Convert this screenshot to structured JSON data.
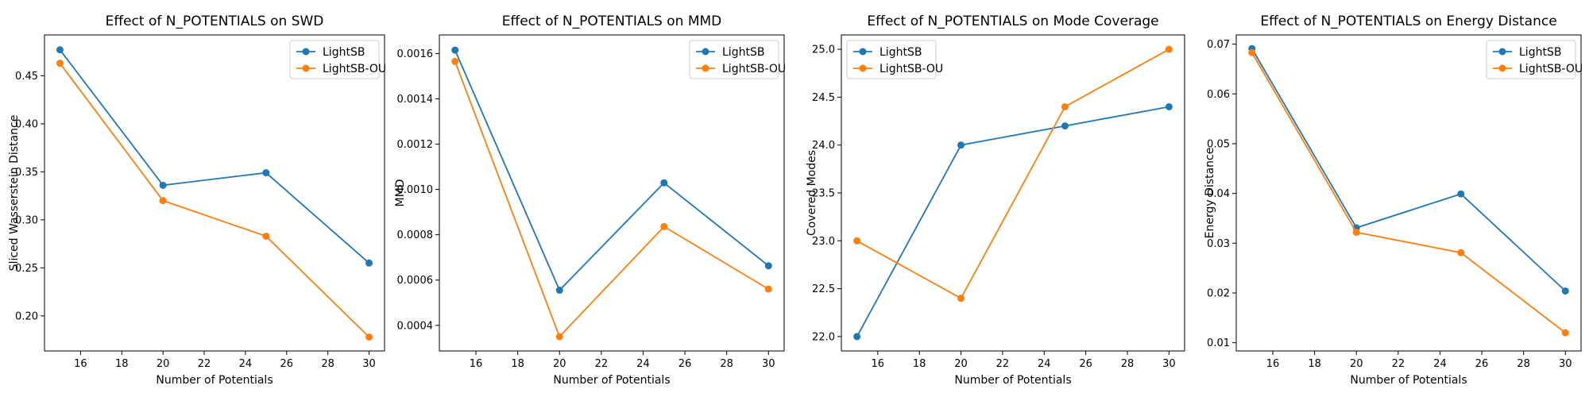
{
  "chart_data": [
    {
      "type": "line",
      "title": "Effect of N_POTENTIALS on SWD",
      "xlabel": "Number of Potentials",
      "ylabel": "Sliced Wasserstein Distance",
      "x": [
        15,
        20,
        25,
        30
      ],
      "xlim": [
        14.25,
        30.75
      ],
      "ylim": [
        0.1635,
        0.4925
      ],
      "xticks": [
        16,
        18,
        20,
        22,
        24,
        26,
        28,
        30
      ],
      "xtick_labels": [
        "16",
        "18",
        "20",
        "22",
        "24",
        "26",
        "28",
        "30"
      ],
      "yticks": [
        0.2,
        0.25,
        0.3,
        0.35,
        0.4,
        0.45
      ],
      "ytick_labels": [
        "0.20",
        "0.25",
        "0.30",
        "0.35",
        "0.40",
        "0.45"
      ],
      "legend_position": "top-right",
      "grid": false,
      "series": [
        {
          "name": "LightSB",
          "values": [
            0.477,
            0.336,
            0.349,
            0.255
          ],
          "color": "#1f77b4"
        },
        {
          "name": "LightSB-OU",
          "values": [
            0.463,
            0.32,
            0.283,
            0.178
          ],
          "color": "#ff7f0e"
        }
      ]
    },
    {
      "type": "line",
      "title": "Effect of N_POTENTIALS on MMD",
      "xlabel": "Number of Potentials",
      "ylabel": "MMD",
      "x": [
        15,
        20,
        25,
        30
      ],
      "xlim": [
        14.25,
        30.75
      ],
      "ylim": [
        0.000287,
        0.001682
      ],
      "xticks": [
        16,
        18,
        20,
        22,
        24,
        26,
        28,
        30
      ],
      "xtick_labels": [
        "16",
        "18",
        "20",
        "22",
        "24",
        "26",
        "28",
        "30"
      ],
      "yticks": [
        0.0004,
        0.0006,
        0.0008,
        0.001,
        0.0012,
        0.0014,
        0.0016
      ],
      "ytick_labels": [
        "0.0004",
        "0.0006",
        "0.0008",
        "0.0010",
        "0.0012",
        "0.0014",
        "0.0016"
      ],
      "legend_position": "top-right",
      "grid": false,
      "series": [
        {
          "name": "LightSB",
          "values": [
            0.001615,
            0.000555,
            0.001029,
            0.000663
          ],
          "color": "#1f77b4"
        },
        {
          "name": "LightSB-OU",
          "values": [
            0.001565,
            0.00035,
            0.000836,
            0.00056
          ],
          "color": "#ff7f0e"
        }
      ]
    },
    {
      "type": "line",
      "title": "Effect of N_POTENTIALS on Mode Coverage",
      "xlabel": "Number of Potentials",
      "ylabel": "Covered Modes",
      "x": [
        15,
        20,
        25,
        30
      ],
      "xlim": [
        14.25,
        30.75
      ],
      "ylim": [
        21.85,
        25.15
      ],
      "xticks": [
        16,
        18,
        20,
        22,
        24,
        26,
        28,
        30
      ],
      "xtick_labels": [
        "16",
        "18",
        "20",
        "22",
        "24",
        "26",
        "28",
        "30"
      ],
      "yticks": [
        22.0,
        22.5,
        23.0,
        23.5,
        24.0,
        24.5,
        25.0
      ],
      "ytick_labels": [
        "22.0",
        "22.5",
        "23.0",
        "23.5",
        "24.0",
        "24.5",
        "25.0"
      ],
      "legend_position": "top-left",
      "grid": false,
      "series": [
        {
          "name": "LightSB",
          "values": [
            22.0,
            24.0,
            24.2,
            24.4
          ],
          "color": "#1f77b4"
        },
        {
          "name": "LightSB-OU",
          "values": [
            23.0,
            22.4,
            24.4,
            25.0
          ],
          "color": "#ff7f0e"
        }
      ]
    },
    {
      "type": "line",
      "title": "Effect of N_POTENTIALS on Energy Distance",
      "xlabel": "Number of Potentials",
      "ylabel": "Energy Distance",
      "x": [
        15,
        20,
        25,
        30
      ],
      "xlim": [
        14.25,
        30.75
      ],
      "ylim": [
        0.00835,
        0.07185
      ],
      "xticks": [
        16,
        18,
        20,
        22,
        24,
        26,
        28,
        30
      ],
      "xtick_labels": [
        "16",
        "18",
        "20",
        "22",
        "24",
        "26",
        "28",
        "30"
      ],
      "yticks": [
        0.01,
        0.02,
        0.03,
        0.04,
        0.05,
        0.06,
        0.07
      ],
      "ytick_labels": [
        "0.01",
        "0.02",
        "0.03",
        "0.04",
        "0.05",
        "0.06",
        "0.07"
      ],
      "legend_position": "top-right",
      "grid": false,
      "series": [
        {
          "name": "LightSB",
          "values": [
            0.0691,
            0.0331,
            0.0399,
            0.0204
          ],
          "color": "#1f77b4"
        },
        {
          "name": "LightSB-OU",
          "values": [
            0.0683,
            0.0322,
            0.0281,
            0.012
          ],
          "color": "#ff7f0e"
        }
      ]
    }
  ]
}
